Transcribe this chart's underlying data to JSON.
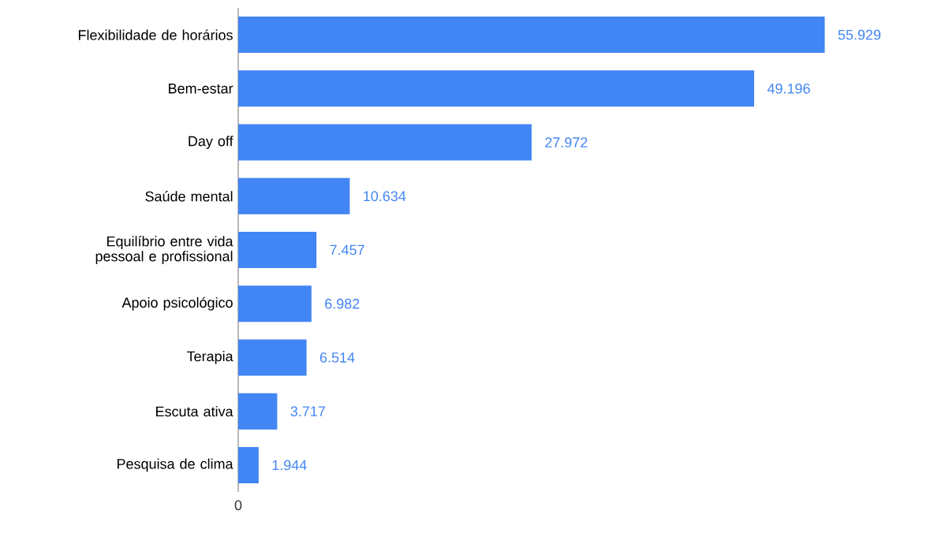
{
  "chart_data": {
    "type": "bar",
    "orientation": "horizontal",
    "categories": [
      "Flexibilidade de horários",
      "Bem-estar",
      "Day off",
      "Saúde mental",
      "Equilíbrio entre vida pessoal e profissional",
      "Apoio psicológico",
      "Terapia",
      "Escuta ativa",
      "Pesquisa de clima"
    ],
    "values": [
      55929,
      49196,
      27972,
      10634,
      7457,
      6982,
      6514,
      3717,
      1944
    ],
    "value_labels": [
      "55.929",
      "49.196",
      "27.972",
      "10.634",
      "7.457",
      "6.982",
      "6.514",
      "3.717",
      "1.944"
    ],
    "annotations": [
      "0"
    ],
    "color": "#4285f4"
  }
}
